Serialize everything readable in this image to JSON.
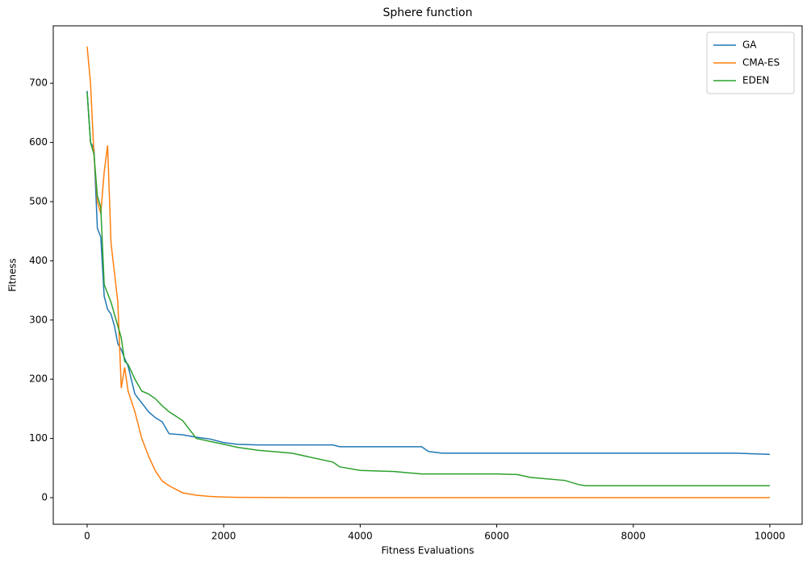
{
  "chart_data": {
    "type": "line",
    "title": "Sphere function",
    "x_label": "Fitness Evaluations",
    "y_label": "Fitness",
    "x": [
      0,
      50,
      100,
      150,
      200,
      250,
      300,
      350,
      400,
      450,
      500,
      550,
      600,
      700,
      800,
      900,
      1000,
      1100,
      1200,
      1400,
      1600,
      1800,
      2000,
      2200,
      2500,
      3000,
      3600,
      3700,
      4000,
      4500,
      4900,
      5000,
      5200,
      6000,
      6300,
      6500,
      7000,
      7200,
      7300,
      8000,
      9000,
      9500,
      10000
    ],
    "series": [
      {
        "name": "GA",
        "color": "#1f77b4",
        "values": [
          687,
          600,
          590,
          455,
          440,
          340,
          318,
          310,
          290,
          260,
          250,
          235,
          222,
          175,
          160,
          145,
          135,
          128,
          108,
          106,
          102,
          99,
          93,
          90,
          89,
          89,
          89,
          86,
          86,
          86,
          86,
          78,
          75,
          75,
          75,
          75,
          75,
          75,
          75,
          75,
          75,
          75,
          73
        ]
      },
      {
        "name": "CMA-ES",
        "color": "#ff7f0e",
        "values": [
          762,
          700,
          580,
          500,
          480,
          550,
          595,
          430,
          380,
          330,
          185,
          220,
          180,
          145,
          100,
          70,
          45,
          28,
          20,
          8,
          4,
          2,
          1,
          0.5,
          0.3,
          0,
          0,
          0,
          0,
          0,
          0,
          0,
          0,
          0,
          0,
          0,
          0,
          0,
          0,
          0,
          0,
          0,
          0
        ]
      },
      {
        "name": "EDEN",
        "color": "#2ca02c",
        "values": [
          685,
          600,
          580,
          510,
          490,
          360,
          345,
          330,
          310,
          290,
          270,
          230,
          225,
          200,
          180,
          175,
          167,
          155,
          145,
          130,
          100,
          95,
          90,
          85,
          80,
          75,
          60,
          52,
          46,
          44,
          40,
          40,
          40,
          40,
          39,
          34,
          29,
          22,
          20,
          20,
          20,
          20,
          20
        ]
      }
    ],
    "xlim": [
      -496,
      10473
    ],
    "ylim": [
      -45,
      797
    ],
    "xticks": [
      0,
      2000,
      4000,
      6000,
      8000,
      10000
    ],
    "yticks": [
      0,
      100,
      200,
      300,
      400,
      500,
      600,
      700
    ],
    "legend": "upper right",
    "grid": false
  }
}
